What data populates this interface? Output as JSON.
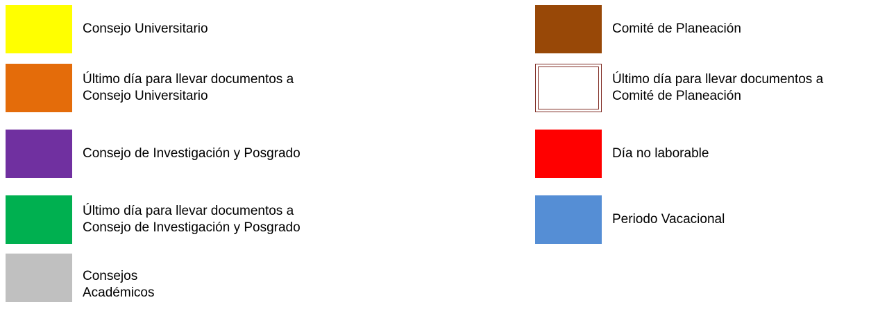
{
  "legend": {
    "items": [
      {
        "color": "#ffff00",
        "lines": [
          "Consejo Universitario"
        ]
      },
      {
        "color": "#e46c0a",
        "lines": [
          "Último día para llevar documentos a",
          "Consejo Universitario"
        ]
      },
      {
        "color": "#7030a0",
        "lines": [
          "Consejo de Investigación y Posgrado"
        ]
      },
      {
        "color": "#00b050",
        "lines": [
          "Último día para llevar documentos a",
          "Consejo de Investigación y Posgrado"
        ]
      },
      {
        "color": "#c0c0c0",
        "lines": [
          "Consejos",
          "Académicos"
        ]
      },
      {
        "color": "#984807",
        "lines": [
          "Comité de Planeación"
        ]
      },
      {
        "color": "#ffffff",
        "border_color": "#7f2a22",
        "style": "double-outline",
        "lines": [
          "Último día para llevar documentos a",
          "Comité de Planeación"
        ]
      },
      {
        "color": "#ff0000",
        "lines": [
          "Día no laborable"
        ]
      },
      {
        "color": "#558ed5",
        "lines": [
          "Periodo Vacacional"
        ]
      }
    ]
  }
}
